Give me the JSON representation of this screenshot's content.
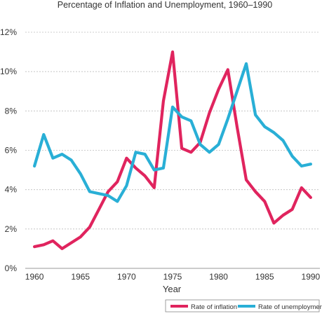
{
  "chart_data": {
    "type": "line",
    "title": "Percentage of Inflation and Unemployment, 1960–1990",
    "xlabel": "Year",
    "ylabel": "",
    "xlim": [
      1959,
      1991
    ],
    "ylim": [
      0,
      12
    ],
    "x_ticks": [
      1960,
      1965,
      1970,
      1975,
      1980,
      1985,
      1990
    ],
    "y_ticks": [
      0,
      2,
      4,
      6,
      8,
      10,
      12
    ],
    "y_tick_labels": [
      "0%",
      "2%",
      "4%",
      "6%",
      "8%",
      "10%",
      "12%"
    ],
    "grid": "horizontal dashed",
    "legend_position": "bottom-right",
    "x": [
      1960,
      1961,
      1962,
      1963,
      1964,
      1965,
      1966,
      1967,
      1968,
      1969,
      1970,
      1971,
      1972,
      1973,
      1974,
      1975,
      1976,
      1977,
      1978,
      1979,
      1980,
      1981,
      1982,
      1983,
      1984,
      1985,
      1986,
      1987,
      1988,
      1989,
      1990
    ],
    "series": [
      {
        "name": "Rate of inflation",
        "color": "#e0245e",
        "values": [
          1.1,
          1.2,
          1.4,
          1.0,
          1.3,
          1.6,
          2.1,
          3.0,
          3.9,
          4.4,
          5.6,
          5.1,
          4.7,
          4.1,
          8.5,
          11.0,
          6.1,
          5.9,
          6.4,
          7.9,
          9.1,
          10.1,
          7.2,
          4.5,
          3.9,
          3.4,
          2.3,
          2.7,
          3.0,
          4.1,
          3.6
        ]
      },
      {
        "name": "Rate of unemployment",
        "color": "#29afd6",
        "values": [
          5.2,
          6.8,
          5.6,
          5.8,
          5.5,
          4.8,
          3.9,
          3.8,
          3.7,
          3.4,
          4.2,
          5.9,
          5.8,
          5.0,
          5.1,
          8.2,
          7.7,
          7.5,
          6.3,
          5.9,
          6.3,
          7.6,
          9.0,
          10.4,
          7.8,
          7.2,
          6.9,
          6.5,
          5.7,
          5.2,
          5.3
        ]
      }
    ]
  }
}
